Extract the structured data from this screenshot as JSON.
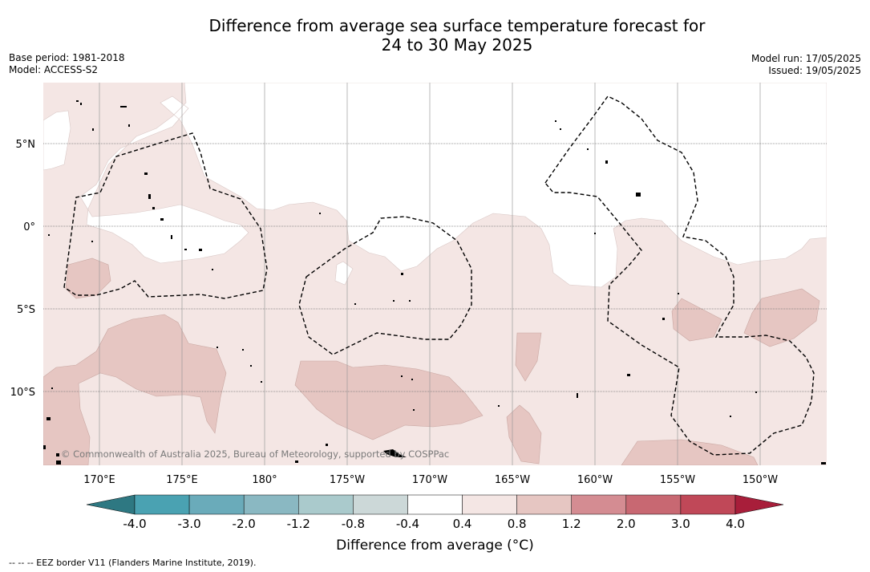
{
  "title_line1": "Difference from average sea surface temperature forecast for",
  "title_line2": "24 to 30 May 2025",
  "base_period": "Base period: 1981-2018",
  "model": "Model: ACCESS-S2",
  "model_run": "Model run: 17/05/2025",
  "issued": "Issued: 19/05/2025",
  "copyright": "© Commonwealth of Australia 2025, Bureau of Meteorology, supported by COSPPac",
  "lat_labels": [
    "5°N",
    "0°",
    "5°S",
    "10°S"
  ],
  "lon_labels": [
    "170°E",
    "175°E",
    "180°",
    "175°W",
    "170°W",
    "165°W",
    "160°W",
    "155°W",
    "150°W"
  ],
  "colorbar": {
    "title": "Difference from average (°C)",
    "tick_labels": [
      "-4.0",
      "-3.0",
      "-2.0",
      "-1.2",
      "-0.8",
      "-0.4",
      "0.4",
      "0.8",
      "1.2",
      "2.0",
      "3.0",
      "4.0"
    ],
    "colors": [
      "#2e7882",
      "#4aa2b2",
      "#6aabba",
      "#8ab8c2",
      "#aacacc",
      "#ccd8d8",
      "#ffffff",
      "#f4e6e4",
      "#e6c6c2",
      "#d48c92",
      "#c86872",
      "#c04858",
      "#a81e3a"
    ]
  },
  "footer": "--  --  -- EEZ border V11 (Flanders Marine Institute, 2019).",
  "colors": {
    "anomaly_0_4_to_0_8": "#f4e6e4",
    "anomaly_0_8_to_1_2": "#e6c6c2",
    "grid": "#999999",
    "eez_border": "#000000"
  }
}
